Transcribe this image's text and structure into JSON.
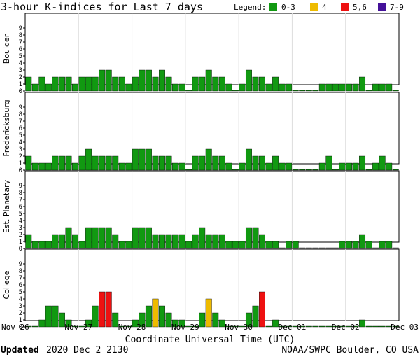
{
  "header": {
    "title": "3-hour K-indices for Last 7 days",
    "legend_label": "Legend:",
    "legend": [
      {
        "label": "0-3",
        "color": "#119911"
      },
      {
        "label": "4",
        "color": "#eebb00"
      },
      {
        "label": "5,6",
        "color": "#ee1111"
      },
      {
        "label": "7-9",
        "color": "#441199"
      }
    ]
  },
  "footer": {
    "updated_label": "Updated",
    "updated_value": "2020 Dec  2 2130",
    "source": "NOAA/SWPC Boulder, CO USA"
  },
  "chart_data": {
    "type": "bar",
    "xlabel": "Coordinate Universal Time (UTC)",
    "x_ticks": [
      "Nov 26",
      "Nov 27",
      "Nov 28",
      "Nov 29",
      "Nov 30",
      "Dec 01",
      "Dec 02",
      "Dec 03"
    ],
    "ylim": [
      0,
      9
    ],
    "y_ticks": [
      "0",
      "1",
      "2",
      "3",
      "4",
      "5",
      "6",
      "7",
      "8",
      "9"
    ],
    "bars_per_day": 8,
    "series": [
      {
        "name": "Boulder",
        "values": [
          2,
          1,
          2,
          1,
          2,
          2,
          2,
          1,
          2,
          2,
          2,
          3,
          3,
          2,
          2,
          1,
          2,
          3,
          3,
          2,
          3,
          2,
          1,
          1,
          0,
          2,
          2,
          3,
          2,
          2,
          1,
          0,
          1,
          3,
          2,
          2,
          1,
          2,
          1,
          1,
          0,
          0,
          0,
          0,
          1,
          1,
          1,
          1,
          1,
          1,
          2,
          0,
          1,
          1,
          1,
          0
        ]
      },
      {
        "name": "Fredericksburg",
        "values": [
          2,
          1,
          1,
          1,
          2,
          2,
          2,
          1,
          2,
          3,
          2,
          2,
          2,
          2,
          1,
          1,
          3,
          3,
          3,
          2,
          2,
          2,
          1,
          1,
          0,
          2,
          2,
          3,
          2,
          2,
          1,
          0,
          1,
          3,
          2,
          2,
          1,
          2,
          1,
          1,
          0,
          0,
          0,
          0,
          1,
          2,
          0,
          1,
          1,
          1,
          2,
          0,
          1,
          2,
          1,
          0
        ]
      },
      {
        "name": "Est. Planetary",
        "values": [
          2,
          1,
          1,
          1,
          2,
          2,
          3,
          2,
          1,
          3,
          3,
          3,
          3,
          2,
          1,
          1,
          3,
          3,
          3,
          2,
          2,
          2,
          2,
          2,
          1,
          2,
          3,
          2,
          2,
          2,
          1,
          1,
          1,
          3,
          3,
          2,
          1,
          1,
          0,
          1,
          1,
          0,
          0,
          0,
          0,
          0,
          0,
          1,
          1,
          1,
          2,
          1,
          0,
          1,
          1,
          0
        ]
      },
      {
        "name": "College",
        "values": [
          0,
          0,
          1,
          3,
          3,
          2,
          1,
          0,
          0,
          1,
          3,
          5,
          5,
          2,
          0,
          0,
          1,
          2,
          3,
          4,
          3,
          2,
          1,
          1,
          0,
          0,
          2,
          4,
          2,
          1,
          0,
          0,
          0,
          2,
          3,
          5,
          0,
          1,
          0,
          0,
          0,
          0,
          0,
          0,
          0,
          0,
          0,
          0,
          0,
          0,
          1,
          0,
          0,
          0,
          0,
          0
        ]
      }
    ]
  }
}
